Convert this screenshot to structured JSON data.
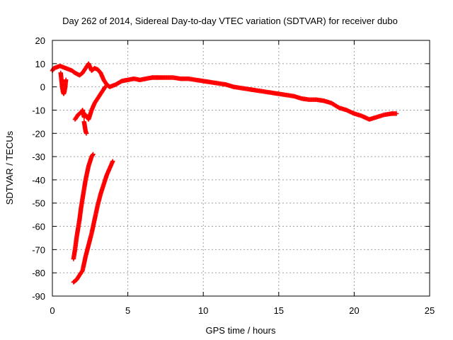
{
  "chart_data": {
    "type": "scatter",
    "title": "Day 262 of 2014, Sidereal Day-to-day VTEC variation (SDTVAR) for receiver dubo",
    "xlabel": "GPS time / hours",
    "ylabel": "SDTVAR / TECUs",
    "xlim": [
      0,
      25
    ],
    "ylim": [
      -90,
      20
    ],
    "xticks": [
      0,
      5,
      10,
      15,
      20,
      25
    ],
    "yticks": [
      -90,
      -80,
      -70,
      -60,
      -50,
      -40,
      -30,
      -20,
      -10,
      0,
      10,
      20
    ],
    "grid": true,
    "marker": "+",
    "color": "#ff0000",
    "series": [
      {
        "name": "main track",
        "x": [
          0.0,
          0.1,
          0.3,
          0.5,
          0.7,
          0.9,
          1.1,
          1.3,
          1.5,
          1.8,
          2.0,
          2.2,
          2.4,
          2.6,
          2.8,
          3.0,
          3.2,
          3.4,
          3.6,
          3.8,
          4.2,
          4.6,
          5.0,
          5.4,
          5.8,
          6.2,
          6.6,
          7.0,
          7.5,
          8.0,
          8.5,
          9.0,
          9.5,
          10.0,
          10.5,
          11.0,
          11.5,
          12.0,
          12.5,
          13.0,
          13.5,
          14.0,
          14.5,
          15.0,
          15.5,
          16.0,
          16.5,
          17.0,
          17.5,
          18.0,
          18.5,
          19.0,
          19.5,
          20.0,
          20.5,
          21.0,
          21.5,
          22.0,
          22.5,
          22.8
        ],
        "y": [
          7,
          8,
          8.5,
          9,
          8.5,
          8,
          7.5,
          7,
          6,
          5,
          6,
          8,
          10,
          7,
          8,
          7.5,
          6,
          3,
          1,
          0,
          1,
          2.5,
          3,
          3.5,
          3,
          3.5,
          4,
          4,
          4,
          4,
          3.5,
          3.5,
          3,
          2.5,
          2,
          1.5,
          1,
          0,
          -0.5,
          -1,
          -1.5,
          -2,
          -2.5,
          -3,
          -3.5,
          -4,
          -5,
          -5.5,
          -5.5,
          -6,
          -7,
          -9,
          -10,
          -11.5,
          -12.5,
          -14,
          -13,
          -12,
          -11.5,
          -11.5
        ]
      },
      {
        "name": "early dip branch",
        "x": [
          0.55,
          0.6,
          0.65,
          0.7,
          0.75,
          0.8,
          0.85,
          0.9
        ],
        "y": [
          6,
          3,
          0,
          -2,
          -3,
          -2,
          0,
          3
        ]
      },
      {
        "name": "return loop",
        "x": [
          1.5,
          1.7,
          1.9,
          2.0,
          2.1,
          2.2,
          2.4,
          2.6,
          2.8,
          3.0,
          3.2,
          3.4,
          3.5
        ],
        "y": [
          -14,
          -12,
          -11,
          -10,
          -13,
          -12,
          -14,
          -10,
          -7,
          -5,
          -3,
          -1,
          0
        ]
      },
      {
        "name": "short drop",
        "x": [
          2.1,
          2.15,
          2.2,
          2.25
        ],
        "y": [
          -15,
          -17,
          -19,
          -20
        ]
      },
      {
        "name": "steep track A",
        "x": [
          1.4,
          1.5,
          1.6,
          1.7,
          1.8,
          1.9,
          2.0,
          2.1,
          2.2,
          2.3,
          2.4,
          2.5,
          2.6,
          2.7
        ],
        "y": [
          -74,
          -70,
          -65,
          -61,
          -57,
          -52,
          -48,
          -44,
          -40,
          -37,
          -34,
          -32,
          -30,
          -29
        ]
      },
      {
        "name": "steep track B",
        "x": [
          1.4,
          1.6,
          1.8,
          2.0,
          2.2,
          2.4,
          2.6,
          2.8,
          3.0,
          3.2,
          3.4,
          3.6,
          3.8,
          4.0
        ],
        "y": [
          -84,
          -83,
          -81,
          -79,
          -73,
          -68,
          -63,
          -57,
          -51,
          -46,
          -42,
          -38,
          -35,
          -32
        ]
      }
    ]
  }
}
